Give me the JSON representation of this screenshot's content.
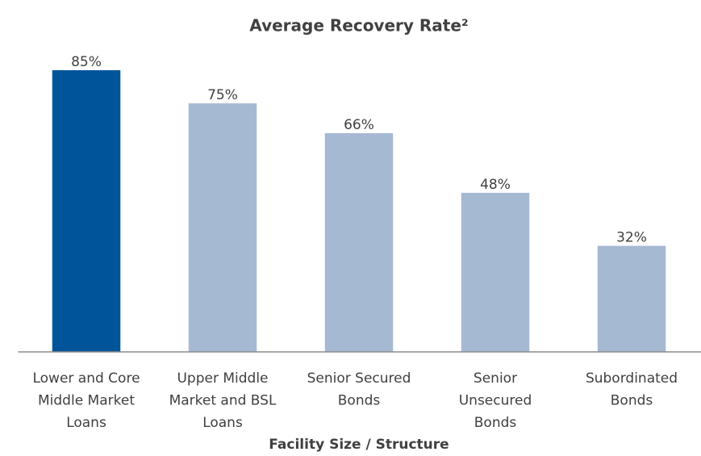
{
  "chart_data": {
    "type": "bar",
    "title": "Average Recovery Rate²",
    "x_label": "Facility Size / Structure",
    "categories": [
      [
        "Lower and Core",
        "Middle Market",
        "Loans"
      ],
      [
        "Upper Middle",
        "Market and BSL",
        "Loans"
      ],
      [
        "Senior Secured",
        "Bonds"
      ],
      [
        "Senior",
        "Unsecured",
        "Bonds"
      ],
      [
        "Subordinated",
        "Bonds"
      ]
    ],
    "values": [
      85,
      75,
      66,
      48,
      32
    ],
    "value_labels": [
      "85%",
      "75%",
      "66%",
      "48%",
      "32%"
    ],
    "colors": [
      "#00559a",
      "#a6b9d3",
      "#a6b9d3",
      "#a6b9d3",
      "#a6b9d3"
    ],
    "ylim": [
      0,
      100
    ],
    "grid": false
  }
}
